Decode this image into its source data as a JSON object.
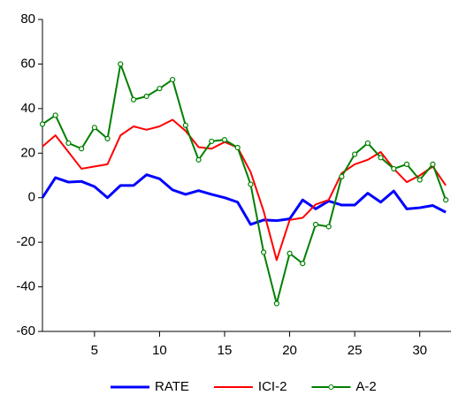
{
  "chart_data": {
    "type": "line",
    "x": [
      1,
      2,
      3,
      4,
      5,
      6,
      7,
      8,
      9,
      10,
      11,
      12,
      13,
      14,
      15,
      16,
      17,
      18,
      19,
      20,
      21,
      22,
      23,
      24,
      25,
      26,
      27,
      28,
      29,
      30,
      31,
      32
    ],
    "series": [
      {
        "name": "RATE",
        "color": "#0000ff",
        "width": 3,
        "values": [
          0,
          9,
          7,
          7.3,
          5,
          0,
          5.5,
          5.5,
          10.3,
          8.5,
          3.5,
          1.5,
          3.2,
          1.5,
          0,
          -2,
          -12,
          -10,
          -10.3,
          -9.5,
          -1,
          -5,
          -1.5,
          -3.3,
          -3.3,
          2,
          -2,
          3,
          -5,
          -4.5,
          -3.5,
          -6.5
        ]
      },
      {
        "name": "ICI-2",
        "color": "#ff0000",
        "width": 2,
        "values": [
          23,
          28,
          20.5,
          13,
          14,
          15,
          28,
          32,
          30.5,
          32,
          35,
          30,
          22.7,
          22,
          25,
          22.5,
          11.5,
          -6,
          -28,
          -10,
          -9,
          -3,
          -1,
          11,
          15,
          17,
          20.5,
          13,
          7,
          10,
          14,
          5.5
        ]
      },
      {
        "name": "A-2",
        "color": "#008000",
        "width": 2,
        "marker": "circle",
        "values": [
          33,
          37,
          24.5,
          22,
          31.5,
          26.5,
          60,
          44,
          45.5,
          49,
          53,
          32.5,
          17,
          25.3,
          26,
          22.5,
          6,
          -24.5,
          -47.5,
          -25,
          -29.5,
          -12,
          -13,
          9.5,
          19.5,
          24.5,
          18,
          13,
          15,
          8,
          15,
          -1
        ]
      }
    ],
    "xlim": [
      1,
      32.4
    ],
    "xticks": [
      5,
      10,
      15,
      20,
      25,
      30
    ],
    "ylim": [
      -60,
      80
    ],
    "yticks": [
      -60,
      -40,
      -20,
      0,
      20,
      40,
      60,
      80
    ],
    "legend": "bottom"
  }
}
